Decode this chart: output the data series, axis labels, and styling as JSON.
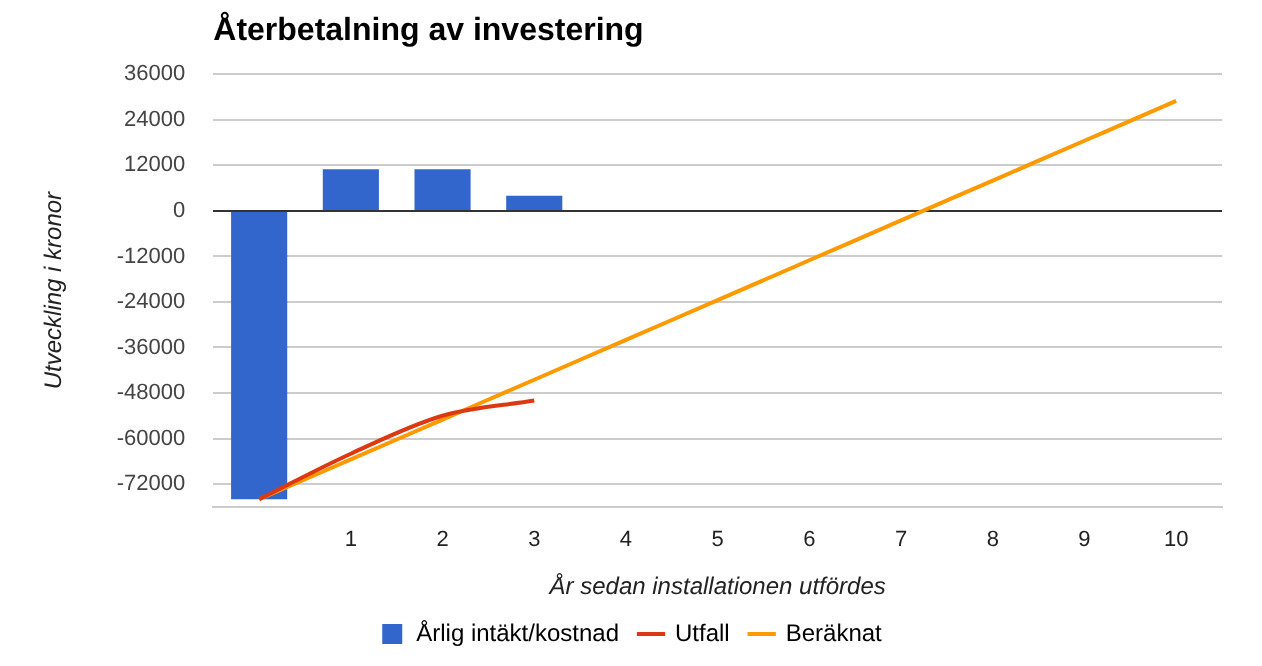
{
  "chart_data": {
    "type": "bar",
    "title": "Återbetalning av investering",
    "xlabel": "År sedan installationen utfördes",
    "ylabel": "Utveckling i kronor",
    "categories": [
      null,
      "1",
      "2",
      "3",
      "4",
      "5",
      "6",
      "7",
      "8",
      "9",
      "10"
    ],
    "series": [
      {
        "name": "Årlig intäkt/kostnad",
        "color": "#3366cc",
        "values": [
          -76000,
          11000,
          11000,
          4000,
          null,
          null,
          null,
          null,
          null,
          null,
          null
        ]
      },
      {
        "name": "Utfall",
        "type": "line",
        "color": "#dc3912",
        "values": [
          -76000,
          -64000,
          -54000,
          -50000,
          null,
          null,
          null,
          null,
          null,
          null,
          null
        ]
      },
      {
        "name": "Beräknat",
        "type": "line",
        "color": "#ff9900",
        "values": [
          -76000,
          -65500,
          -55000,
          -44500,
          -34000,
          -23500,
          -13000,
          -2500,
          8000,
          18500,
          29000
        ]
      }
    ],
    "ylim": [
      -78000,
      36000
    ],
    "yticks": [
      -72000,
      -60000,
      -48000,
      -36000,
      -24000,
      -12000,
      0,
      12000,
      24000,
      36000
    ],
    "grid": "y",
    "legend": "bottom",
    "marker": "none",
    "line_style": "solid"
  }
}
